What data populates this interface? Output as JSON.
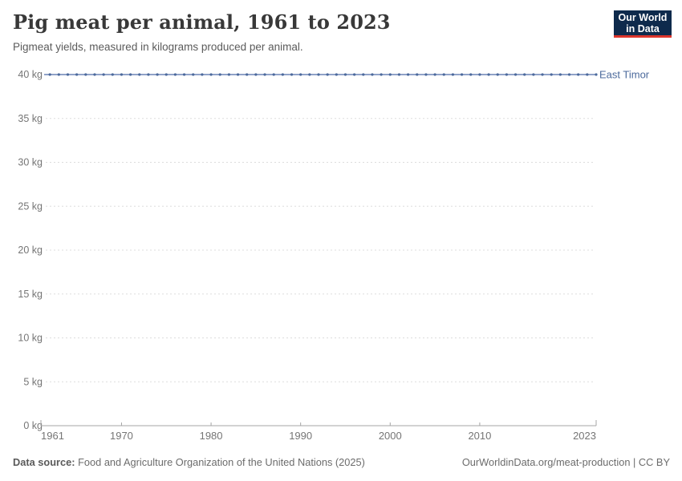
{
  "logo": {
    "line1": "Our World",
    "line2": "in Data",
    "background": "#0e2a4c",
    "accent": "#dc352c"
  },
  "chart_data": {
    "type": "line",
    "title": "Pig meat per animal, 1961 to 2023",
    "subtitle": "Pigmeat yields, measured in kilograms produced per animal.",
    "xlabel": "",
    "ylabel": "",
    "xlim": [
      1961,
      2023
    ],
    "ylim": [
      0,
      40
    ],
    "xticks": [
      1961,
      1970,
      1980,
      1990,
      2000,
      2010,
      2023
    ],
    "yticks": [
      0,
      5,
      10,
      15,
      20,
      25,
      30,
      35,
      40
    ],
    "ytick_suffix": " kg",
    "grid": "horizontal-dashed",
    "legend_position": "label-at-line-end",
    "series": [
      {
        "name": "East Timor",
        "x": [
          1961,
          1962,
          1963,
          1964,
          1965,
          1966,
          1967,
          1968,
          1969,
          1970,
          1971,
          1972,
          1973,
          1974,
          1975,
          1976,
          1977,
          1978,
          1979,
          1980,
          1981,
          1982,
          1983,
          1984,
          1985,
          1986,
          1987,
          1988,
          1989,
          1990,
          1991,
          1992,
          1993,
          1994,
          1995,
          1996,
          1997,
          1998,
          1999,
          2000,
          2001,
          2002,
          2003,
          2004,
          2005,
          2006,
          2007,
          2008,
          2009,
          2010,
          2011,
          2012,
          2013,
          2014,
          2015,
          2016,
          2017,
          2018,
          2019,
          2020,
          2021,
          2022,
          2023
        ],
        "values": [
          40,
          40,
          40,
          40,
          40,
          40,
          40,
          40,
          40,
          40,
          40,
          40,
          40,
          40,
          40,
          40,
          40,
          40,
          40,
          40,
          40,
          40,
          40,
          40,
          40,
          40,
          40,
          40,
          40,
          40,
          40,
          40,
          40,
          40,
          40,
          40,
          40,
          40,
          40,
          40,
          40,
          40,
          40,
          40,
          40,
          40,
          40,
          40,
          40,
          40,
          40,
          40,
          40,
          40,
          40,
          40,
          40,
          40,
          40,
          40,
          40,
          40,
          40
        ]
      }
    ],
    "colors": {
      "line": "#8095c0",
      "point": "#4c6a9c",
      "entity_label": "#4c6a9c",
      "grid": "#dddddd",
      "axis": "#a5a5a5",
      "tick_text": "#757575"
    }
  },
  "footer": {
    "source_label": "Data source:",
    "source_value": "Food and Agriculture Organization of the United Nations (2025)",
    "link": "OurWorldinData.org/meat-production",
    "license": "| CC BY"
  }
}
